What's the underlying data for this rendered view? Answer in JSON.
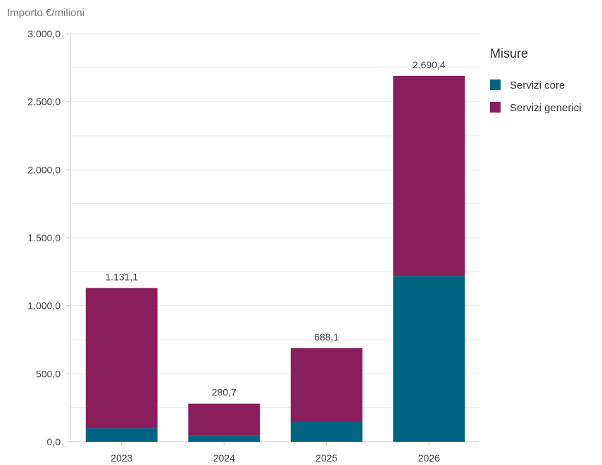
{
  "chart_data": {
    "type": "bar",
    "stacked": true,
    "ylabel": "Importo €/milioni",
    "ylim": [
      0,
      3000
    ],
    "y_ticks": [
      0,
      500,
      1000,
      1500,
      2000,
      2500,
      3000
    ],
    "y_tick_labels": [
      "0,0",
      "500,0",
      "1.000,0",
      "1.500,0",
      "2.000,0",
      "2.500,0",
      "3.000,0"
    ],
    "grid": true,
    "categories": [
      "2023",
      "2024",
      "2025",
      "2026"
    ],
    "series": [
      {
        "name": "Servizi core",
        "color": "#006482",
        "values": [
          100,
          45,
          150,
          1220
        ]
      },
      {
        "name": "Servizi generici",
        "color": "#8a1f5c",
        "values": [
          1031.1,
          235.7,
          538.1,
          1470.4
        ]
      }
    ],
    "total_labels": [
      "1.131,1",
      "280,7",
      "688,1",
      "2.690,4"
    ],
    "legend": {
      "title": "Misure",
      "position": "top-right"
    }
  }
}
